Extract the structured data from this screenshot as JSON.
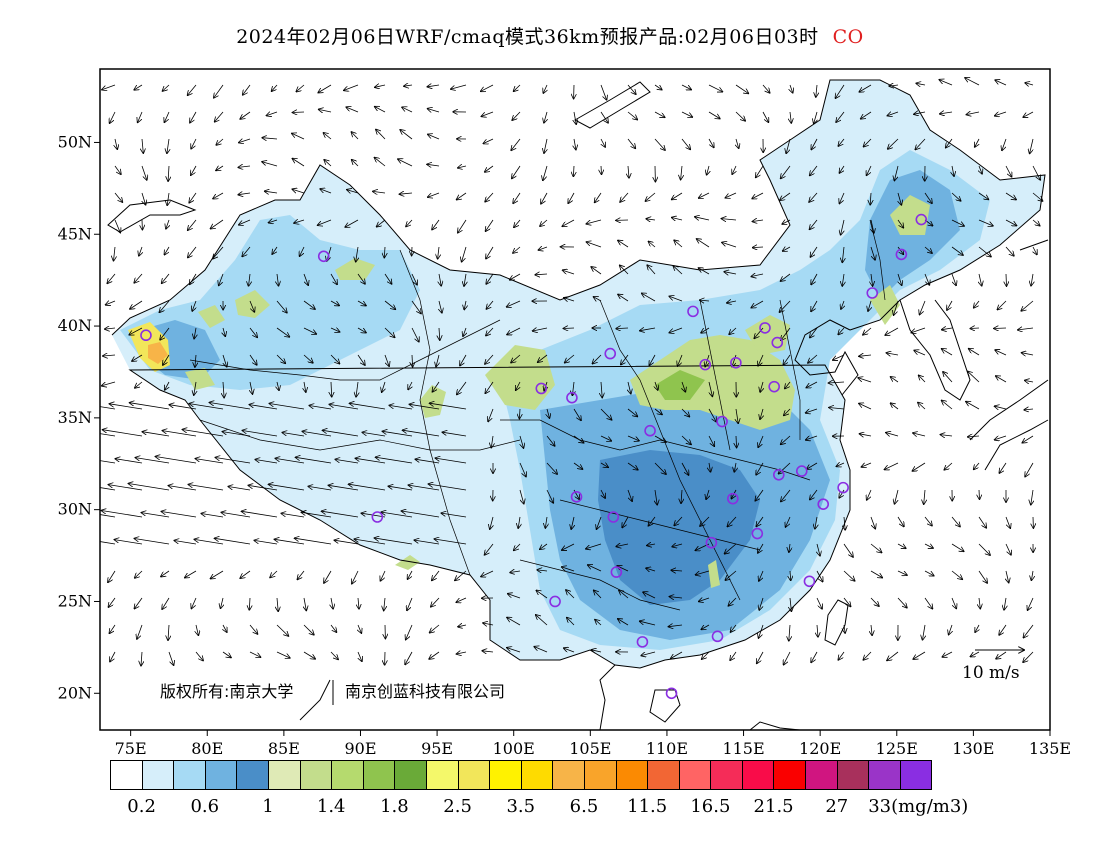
{
  "title": {
    "main": "2024年02月06日WRF/cmaq模式36km预报产品:02月06日03时",
    "species": "CO",
    "species_color": "#e02020"
  },
  "axes": {
    "x_ticks": [
      "75E",
      "80E",
      "85E",
      "90E",
      "95E",
      "100E",
      "105E",
      "110E",
      "115E",
      "120E",
      "125E",
      "130E",
      "135E"
    ],
    "y_ticks": [
      "50N",
      "45N",
      "40N",
      "35N",
      "30N",
      "25N",
      "20N"
    ]
  },
  "credit": {
    "text1": "版权所有:南京大学",
    "text2": "南京创蓝科技有限公司"
  },
  "wind_scale": {
    "label": "10 m/s"
  },
  "legend": {
    "colors": [
      "#ffffff",
      "#d6eefa",
      "#a6daf4",
      "#6fb2e0",
      "#4a8ec8",
      "#dfeab6",
      "#c3dd8c",
      "#b5da6e",
      "#8fc44e",
      "#6aaa38",
      "#f4f86a",
      "#f2e65a",
      "#fff200",
      "#fedb00",
      "#f7b448",
      "#f9a42a",
      "#fb8a02",
      "#f26634",
      "#ff6464",
      "#f52c58",
      "#f90c49",
      "#fa0000",
      "#d01580",
      "#a8305c",
      "#9a34c8",
      "#8a2ee2"
    ],
    "labels": [
      "0.2",
      "0.6",
      "1",
      "1.4",
      "1.8",
      "2.5",
      "3.5",
      "6.5",
      "11.5",
      "16.5",
      "21.5",
      "27",
      "33(mg/m3)"
    ],
    "unit": "(mg/m3)"
  },
  "chart_data": {
    "type": "heatmap",
    "title": "2024年02月06日WRF/cmaq模式36km预报产品:02月06日03时 CO",
    "xlabel": "",
    "ylabel": "",
    "xlim_deg_east": [
      73,
      135
    ],
    "ylim_deg_north": [
      18,
      54
    ],
    "levels_mg_m3": [
      0.2,
      0.6,
      1,
      1.4,
      1.8,
      2.5,
      3.5,
      6.5,
      11.5,
      16.5,
      21.5,
      27,
      33
    ],
    "stations": [
      {
        "lon": 87.6,
        "lat": 43.8
      },
      {
        "lon": 76.0,
        "lat": 39.5
      },
      {
        "lon": 101.8,
        "lat": 36.6
      },
      {
        "lon": 103.8,
        "lat": 36.1
      },
      {
        "lon": 106.3,
        "lat": 38.5
      },
      {
        "lon": 111.7,
        "lat": 40.8
      },
      {
        "lon": 112.5,
        "lat": 37.9
      },
      {
        "lon": 114.5,
        "lat": 38.0
      },
      {
        "lon": 116.4,
        "lat": 39.9
      },
      {
        "lon": 117.2,
        "lat": 39.1
      },
      {
        "lon": 117.0,
        "lat": 36.7
      },
      {
        "lon": 113.6,
        "lat": 34.8
      },
      {
        "lon": 108.9,
        "lat": 34.3
      },
      {
        "lon": 117.3,
        "lat": 31.9
      },
      {
        "lon": 118.8,
        "lat": 32.1
      },
      {
        "lon": 121.5,
        "lat": 31.2
      },
      {
        "lon": 120.2,
        "lat": 30.3
      },
      {
        "lon": 114.3,
        "lat": 30.6
      },
      {
        "lon": 115.9,
        "lat": 28.7
      },
      {
        "lon": 112.9,
        "lat": 28.2
      },
      {
        "lon": 106.5,
        "lat": 29.6
      },
      {
        "lon": 104.1,
        "lat": 30.7
      },
      {
        "lon": 106.7,
        "lat": 26.6
      },
      {
        "lon": 102.7,
        "lat": 25.0
      },
      {
        "lon": 108.4,
        "lat": 22.8
      },
      {
        "lon": 113.3,
        "lat": 23.1
      },
      {
        "lon": 119.3,
        "lat": 26.1
      },
      {
        "lon": 110.3,
        "lat": 20.0
      },
      {
        "lon": 91.1,
        "lat": 29.6
      },
      {
        "lon": 123.4,
        "lat": 41.8
      },
      {
        "lon": 125.3,
        "lat": 43.9
      },
      {
        "lon": 126.6,
        "lat": 45.8
      }
    ]
  }
}
